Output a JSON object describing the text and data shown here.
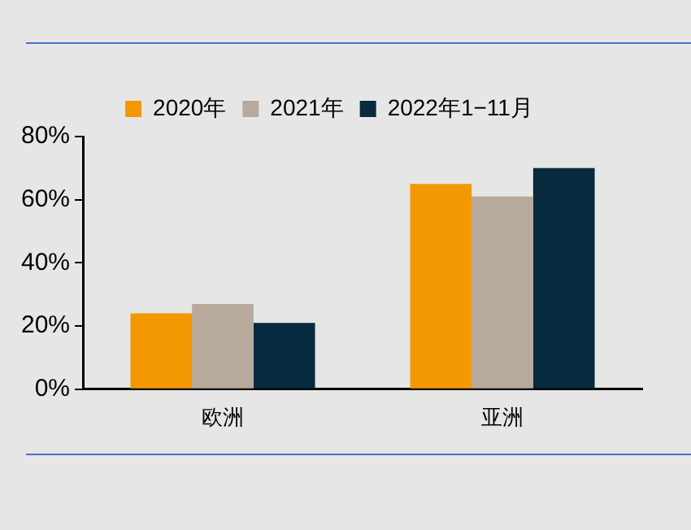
{
  "chart_data": {
    "type": "bar",
    "categories": [
      "欧洲",
      "亚洲"
    ],
    "series": [
      {
        "name": "2020年",
        "color": "#f39800",
        "values": [
          24,
          65
        ]
      },
      {
        "name": "2021年",
        "color": "#b7a99b",
        "values": [
          27,
          61
        ]
      },
      {
        "name": "2022年1−11月",
        "color": "#072a3e",
        "values": [
          21,
          70
        ]
      }
    ],
    "ylim": [
      0,
      80
    ],
    "yticks": [
      {
        "value": 0,
        "label": "0%"
      },
      {
        "value": 20,
        "label": "20%"
      },
      {
        "value": 40,
        "label": "40%"
      },
      {
        "value": 60,
        "label": "60%"
      },
      {
        "value": 80,
        "label": "80%"
      }
    ],
    "grid": false,
    "legend": "top"
  }
}
